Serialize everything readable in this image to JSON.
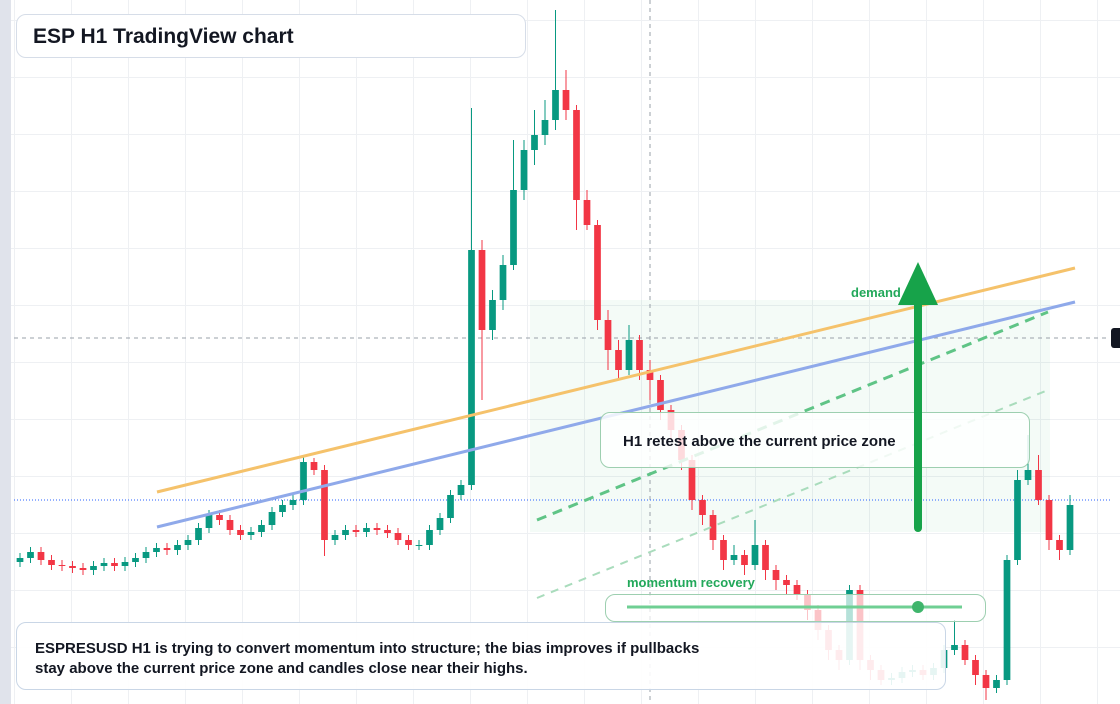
{
  "chart_data": {
    "type": "candlestick",
    "title": "ESP H1 TradingView chart",
    "open": [
      142,
      146,
      152,
      144,
      139,
      138,
      136,
      134,
      138,
      141,
      138,
      142,
      146,
      152,
      156,
      154,
      159,
      164,
      176,
      189,
      184,
      174,
      169,
      172,
      179,
      192,
      199,
      204,
      242,
      234,
      164,
      169,
      174,
      172,
      176,
      174,
      171,
      164,
      159,
      159,
      174,
      186,
      209,
      219,
      454,
      374,
      404,
      439,
      514,
      554,
      569,
      584,
      614,
      594,
      504,
      479,
      384,
      354,
      334,
      364,
      334,
      324,
      294,
      274,
      244,
      204,
      189,
      164,
      144,
      149,
      139,
      159,
      134,
      124,
      119,
      109,
      94,
      74,
      54,
      44,
      114,
      44,
      34,
      24,
      26,
      32,
      34,
      29,
      36,
      54,
      59,
      44,
      29,
      16,
      24,
      144,
      224,
      234,
      204,
      164,
      154
    ],
    "high": [
      151,
      157,
      157,
      149,
      144,
      143,
      141,
      143,
      146,
      146,
      147,
      151,
      157,
      161,
      161,
      164,
      169,
      181,
      194,
      194,
      189,
      179,
      177,
      184,
      197,
      204,
      209,
      248,
      246,
      239,
      174,
      179,
      179,
      181,
      181,
      179,
      176,
      169,
      164,
      179,
      191,
      214,
      224,
      596,
      464,
      414,
      449,
      564,
      564,
      594,
      604,
      694,
      634,
      599,
      514,
      484,
      394,
      364,
      379,
      369,
      344,
      329,
      299,
      279,
      249,
      209,
      194,
      169,
      159,
      154,
      184,
      164,
      139,
      129,
      124,
      114,
      99,
      79,
      59,
      119,
      119,
      49,
      39,
      31,
      37,
      39,
      39,
      41,
      59,
      84,
      64,
      49,
      34,
      29,
      149,
      234,
      269,
      249,
      209,
      169,
      209
    ],
    "low": [
      137,
      141,
      139,
      134,
      133,
      131,
      129,
      129,
      133,
      133,
      133,
      137,
      141,
      147,
      149,
      149,
      154,
      159,
      171,
      179,
      169,
      164,
      164,
      167,
      174,
      187,
      194,
      199,
      229,
      148,
      159,
      164,
      167,
      167,
      169,
      166,
      159,
      154,
      154,
      154,
      169,
      181,
      204,
      214,
      304,
      364,
      394,
      434,
      504,
      539,
      559,
      574,
      584,
      474,
      474,
      374,
      334,
      324,
      329,
      324,
      304,
      284,
      264,
      234,
      194,
      179,
      154,
      134,
      139,
      129,
      134,
      124,
      114,
      109,
      104,
      84,
      64,
      44,
      34,
      39,
      34,
      24,
      19,
      19,
      21,
      27,
      24,
      24,
      31,
      49,
      39,
      19,
      4,
      11,
      19,
      139,
      219,
      199,
      154,
      144,
      149
    ],
    "close": [
      146,
      152,
      144,
      139,
      138,
      136,
      134,
      138,
      141,
      138,
      142,
      146,
      152,
      156,
      154,
      159,
      164,
      176,
      189,
      184,
      174,
      169,
      172,
      179,
      192,
      199,
      204,
      242,
      234,
      164,
      169,
      174,
      172,
      176,
      174,
      171,
      164,
      159,
      159,
      174,
      186,
      209,
      219,
      454,
      374,
      404,
      439,
      514,
      554,
      569,
      584,
      614,
      594,
      504,
      479,
      384,
      354,
      334,
      364,
      334,
      324,
      294,
      274,
      244,
      204,
      189,
      164,
      144,
      149,
      139,
      159,
      134,
      124,
      119,
      109,
      94,
      74,
      54,
      44,
      114,
      44,
      34,
      24,
      26,
      32,
      34,
      29,
      36,
      54,
      59,
      44,
      29,
      16,
      24,
      144,
      224,
      234,
      204,
      164,
      154,
      199
    ],
    "ylim": [
      0,
      704
    ],
    "colors": {
      "up": "#089981",
      "down": "#f23645"
    },
    "annotations": {
      "retest": "H1 retest above the current price zone",
      "demand": "demand side",
      "momentum": "momentum recovery"
    },
    "caption": "ESPRESUSD H1 is trying to convert momentum into structure; the bias improves if pullbacks stay above the current price zone and candles close near their highs."
  }
}
